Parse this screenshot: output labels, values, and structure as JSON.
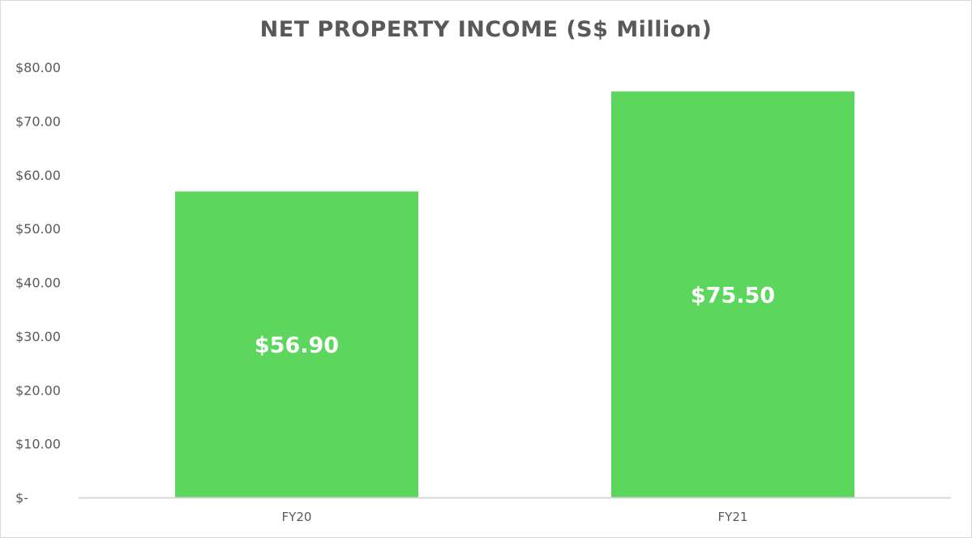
{
  "chart_data": {
    "type": "bar",
    "title": "NET PROPERTY INCOME (S$ Million)",
    "categories": [
      "FY20",
      "FY21"
    ],
    "values": [
      56.9,
      75.5
    ],
    "data_labels": [
      "$56.90",
      "$75.50"
    ],
    "y_tick_values": [
      0,
      10,
      20,
      30,
      40,
      50,
      60,
      70,
      80
    ],
    "y_tick_labels": [
      "$-",
      "$10.00",
      "$20.00",
      "$30.00",
      "$40.00",
      "$50.00",
      "$60.00",
      "$70.00",
      "$80.00"
    ],
    "xlabel": "",
    "ylabel": "",
    "ylim": [
      0,
      80
    ],
    "grid": false,
    "legend": "none",
    "bar_color": "#5cd65c",
    "axis_color": "#d9d9d9",
    "text_color": "#595959"
  }
}
